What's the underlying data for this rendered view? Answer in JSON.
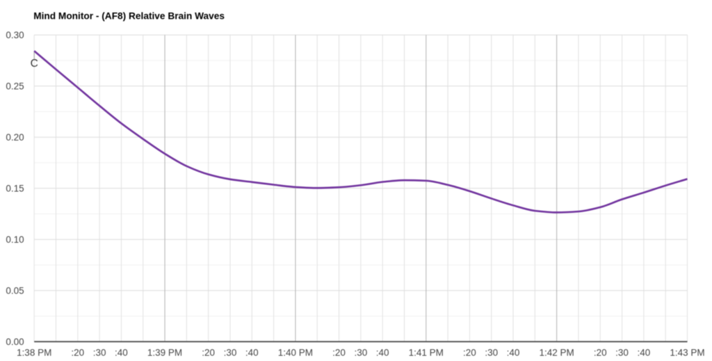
{
  "page": {
    "background_color": "#ffffff"
  },
  "chart_data": {
    "type": "line",
    "title": "Mind Monitor - (AF8) Relative Brain Waves",
    "title_color": "#000000",
    "axis_label_color": "#444444",
    "legend_position": "none",
    "grid": {
      "h_major_color": "#dcdcdc",
      "h_minor_color": "#f2f2f2",
      "v_minor_color": "#e0e0e0",
      "v_major_color": "#b0b0b0",
      "baseline_color": "#4f4f4f"
    },
    "x_axis": {
      "unit": "seconds since 1:38:00 PM",
      "range": [
        0,
        300
      ],
      "minor_gridline_step_seconds": 10,
      "major_gridline_step_seconds": 60,
      "tick_labels": [
        {
          "t": 0,
          "label": "1:38 PM"
        },
        {
          "t": 20,
          "label": ":20"
        },
        {
          "t": 30,
          "label": ":30"
        },
        {
          "t": 40,
          "label": ":40"
        },
        {
          "t": 60,
          "label": "1:39 PM"
        },
        {
          "t": 80,
          "label": ":20"
        },
        {
          "t": 90,
          "label": ":30"
        },
        {
          "t": 100,
          "label": ":40"
        },
        {
          "t": 120,
          "label": "1:40 PM"
        },
        {
          "t": 140,
          "label": ":20"
        },
        {
          "t": 150,
          "label": ":30"
        },
        {
          "t": 160,
          "label": ":40"
        },
        {
          "t": 180,
          "label": "1:41 PM"
        },
        {
          "t": 200,
          "label": ":20"
        },
        {
          "t": 210,
          "label": ":30"
        },
        {
          "t": 220,
          "label": ":40"
        },
        {
          "t": 240,
          "label": "1:42 PM"
        },
        {
          "t": 260,
          "label": ":20"
        },
        {
          "t": 270,
          "label": ":30"
        },
        {
          "t": 280,
          "label": ":40"
        },
        {
          "t": 300,
          "label": "1:43 PM"
        }
      ]
    },
    "y_axis": {
      "range": [
        0,
        0.3
      ],
      "major_gridline_step": 0.05,
      "minor_gridline_step": 0.025,
      "tick_labels": [
        "0.00",
        "0.05",
        "0.10",
        "0.15",
        "0.20",
        "0.25",
        "0.30"
      ]
    },
    "series": [
      {
        "name": "(AF8) Relative Brain Waves",
        "color": "#72359f",
        "line_width": 2.7,
        "smoothing": "function",
        "x_seconds": [
          0,
          10,
          20,
          30,
          40,
          50,
          60,
          70,
          80,
          90,
          100,
          110,
          120,
          130,
          140,
          150,
          160,
          170,
          180,
          190,
          200,
          210,
          220,
          230,
          240,
          250,
          260,
          270,
          280,
          290,
          300
        ],
        "values": [
          0.2843,
          0.2663,
          0.2485,
          0.2307,
          0.2135,
          0.1982,
          0.1838,
          0.1717,
          0.1636,
          0.1588,
          0.1561,
          0.1535,
          0.1512,
          0.1503,
          0.151,
          0.153,
          0.1562,
          0.1579,
          0.1574,
          0.1533,
          0.1472,
          0.14,
          0.1333,
          0.128,
          0.1264,
          0.1273,
          0.1315,
          0.1392,
          0.1458,
          0.1527,
          0.1591
        ]
      }
    ],
    "annotations": [
      {
        "label": "C",
        "series": "(AF8) Relative Brain Waves",
        "at_second": 0,
        "color": "#333333",
        "stem_color": "#999999"
      }
    ]
  }
}
